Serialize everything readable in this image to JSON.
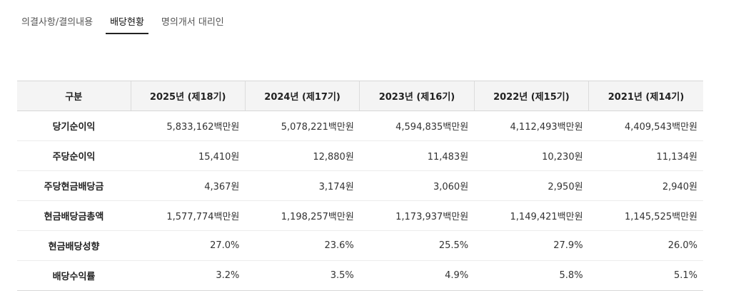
{
  "tabs": [
    {
      "label": "의결사항/결의내용",
      "active": false
    },
    {
      "label": "배당현황",
      "active": true
    },
    {
      "label": "명의개서 대리인",
      "active": false
    }
  ],
  "table": {
    "headers": [
      "구분",
      "2025년 (제18기)",
      "2024년 (제17기)",
      "2023년 (제16기)",
      "2022년 (제15기)",
      "2021년 (제14기)"
    ],
    "rows": [
      {
        "label": "당기순이익",
        "values": [
          "5,833,162백만원",
          "5,078,221백만원",
          "4,594,835백만원",
          "4,112,493백만원",
          "4,409,543백만원"
        ]
      },
      {
        "label": "주당순이익",
        "values": [
          "15,410원",
          "12,880원",
          "11,483원",
          "10,230원",
          "11,134원"
        ]
      },
      {
        "label": "주당현금배당금",
        "values": [
          "4,367원",
          "3,174원",
          "3,060원",
          "2,950원",
          "2,940원"
        ]
      },
      {
        "label": "현금배당금총액",
        "values": [
          "1,577,774백만원",
          "1,198,257백만원",
          "1,173,937백만원",
          "1,149,421백만원",
          "1,145,525백만원"
        ]
      },
      {
        "label": "현금배당성향",
        "values": [
          "27.0%",
          "23.6%",
          "25.5%",
          "27.9%",
          "26.0%"
        ]
      },
      {
        "label": "배당수익률",
        "values": [
          "3.2%",
          "3.5%",
          "4.9%",
          "5.8%",
          "5.1%"
        ]
      }
    ]
  }
}
